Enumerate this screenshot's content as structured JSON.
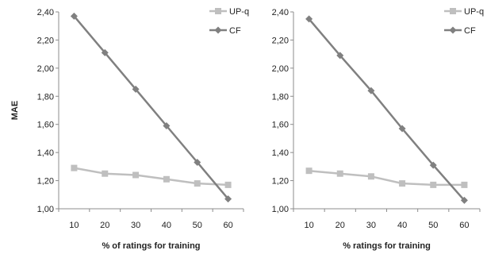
{
  "chart_data": [
    {
      "type": "line",
      "title": "",
      "xlabel": "% of ratings for training",
      "ylabel": "MAE",
      "x": [
        10,
        20,
        30,
        40,
        50,
        60
      ],
      "ylim": [
        1.0,
        2.4
      ],
      "yticks": [
        "1,00",
        "1,20",
        "1,40",
        "1,60",
        "1,80",
        "2,00",
        "2,20",
        "2,40"
      ],
      "xticks": [
        "10",
        "20",
        "30",
        "40",
        "50",
        "60"
      ],
      "grid": false,
      "legend_position": "top-right",
      "series": [
        {
          "name": "UP-q",
          "color": "#bfbfbf",
          "marker": "square",
          "values": [
            1.29,
            1.25,
            1.24,
            1.21,
            1.18,
            1.17
          ]
        },
        {
          "name": "CF",
          "color": "#808080",
          "marker": "diamond",
          "values": [
            2.37,
            2.11,
            1.85,
            1.59,
            1.33,
            1.07
          ]
        }
      ]
    },
    {
      "type": "line",
      "title": "",
      "xlabel": "% ratings for training",
      "ylabel": "",
      "x": [
        10,
        20,
        30,
        40,
        50,
        60
      ],
      "ylim": [
        1.0,
        2.4
      ],
      "yticks": [
        "1,00",
        "1,20",
        "1,40",
        "1,60",
        "1,80",
        "2,00",
        "2,20",
        "2,40"
      ],
      "xticks": [
        "10",
        "20",
        "30",
        "40",
        "50",
        "60"
      ],
      "grid": false,
      "legend_position": "top-right",
      "series": [
        {
          "name": "UP-q",
          "color": "#bfbfbf",
          "marker": "square",
          "values": [
            1.27,
            1.25,
            1.23,
            1.18,
            1.17,
            1.17
          ]
        },
        {
          "name": "CF",
          "color": "#808080",
          "marker": "diamond",
          "values": [
            2.35,
            2.09,
            1.84,
            1.57,
            1.31,
            1.06
          ]
        }
      ]
    }
  ]
}
